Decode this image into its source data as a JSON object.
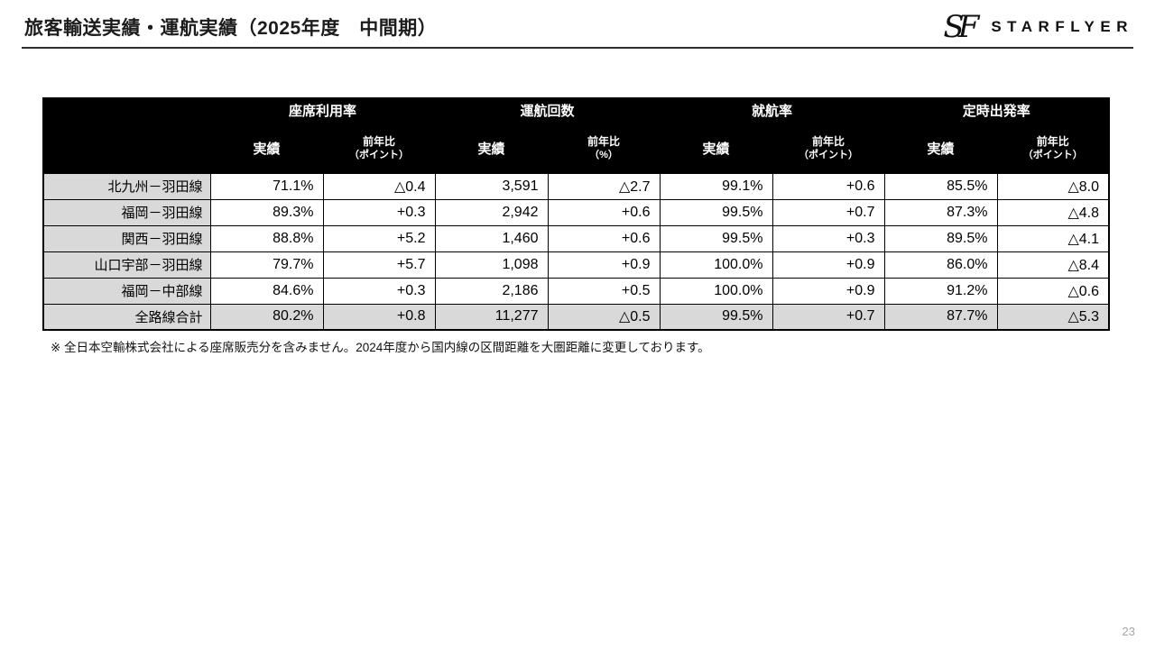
{
  "slide": {
    "title": "旅客輸送実績・運航実績（2025年度　中間期）",
    "footnote": "※ 全日本空輸株式会社による座席販売分を含みません。2024年度から国内線の区間距離を大圏距離に変更しております。",
    "page_number": "23"
  },
  "logo": {
    "monogram": "SF",
    "wordmark": "STARFLYER"
  },
  "table": {
    "group_headers": [
      "座席利用率",
      "運航回数",
      "就航率",
      "定時出発率"
    ],
    "sub_headers": [
      {
        "actual": "実績",
        "yoy_line1": "前年比",
        "yoy_line2": "（ポイント）"
      },
      {
        "actual": "実績",
        "yoy_line1": "前年比",
        "yoy_line2": "（%）"
      },
      {
        "actual": "実績",
        "yoy_line1": "前年比",
        "yoy_line2": "（ポイント）"
      },
      {
        "actual": "実績",
        "yoy_line1": "前年比",
        "yoy_line2": "（ポイント）"
      }
    ],
    "rows": [
      {
        "label": "北九州－羽田線",
        "values": [
          "71.1%",
          "△0.4",
          "3,591",
          "△2.7",
          "99.1%",
          "+0.6",
          "85.5%",
          "△8.0"
        ],
        "is_total": false
      },
      {
        "label": "福岡－羽田線",
        "values": [
          "89.3%",
          "+0.3",
          "2,942",
          "+0.6",
          "99.5%",
          "+0.7",
          "87.3%",
          "△4.8"
        ],
        "is_total": false
      },
      {
        "label": "関西－羽田線",
        "values": [
          "88.8%",
          "+5.2",
          "1,460",
          "+0.6",
          "99.5%",
          "+0.3",
          "89.5%",
          "△4.1"
        ],
        "is_total": false
      },
      {
        "label": "山口宇部－羽田線",
        "values": [
          "79.7%",
          "+5.7",
          "1,098",
          "+0.9",
          "100.0%",
          "+0.9",
          "86.0%",
          "△8.4"
        ],
        "is_total": false
      },
      {
        "label": "福岡－中部線",
        "values": [
          "84.6%",
          "+0.3",
          "2,186",
          "+0.5",
          "100.0%",
          "+0.9",
          "91.2%",
          "△0.6"
        ],
        "is_total": false
      },
      {
        "label": "全路線合計",
        "values": [
          "80.2%",
          "+0.8",
          "11,277",
          "△0.5",
          "99.5%",
          "+0.7",
          "87.7%",
          "△5.3"
        ],
        "is_total": true
      }
    ],
    "colors": {
      "header_bg": "#000000",
      "header_text": "#ffffff",
      "label_bg": "#d9d9d9",
      "total_row_bg": "#d9d9d9",
      "border": "#000000"
    }
  }
}
